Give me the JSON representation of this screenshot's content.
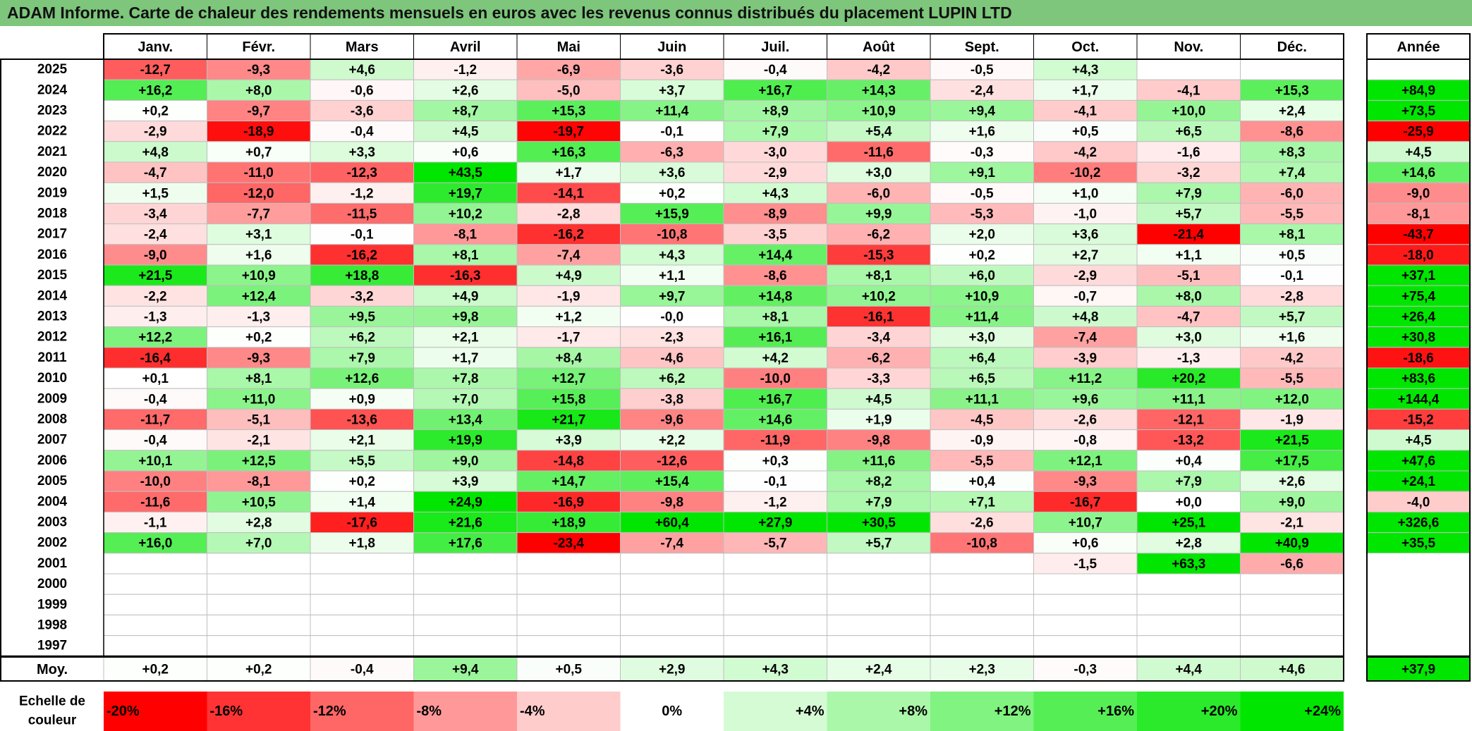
{
  "title": "ADAM Informe. Carte de chaleur des rendements mensuels en euros avec les revenus connus distribués du placement LUPIN LTD",
  "chart_data": {
    "type": "heatmap",
    "months": [
      "Janv.",
      "Févr.",
      "Mars",
      "Avril",
      "Mai",
      "Juin",
      "Juil.",
      "Août",
      "Sept.",
      "Oct.",
      "Nov.",
      "Déc."
    ],
    "year_header": "Année",
    "rows": [
      {
        "year": "2025",
        "values": [
          -12.7,
          -9.3,
          4.6,
          -1.2,
          -6.9,
          -3.6,
          -0.4,
          -4.2,
          -0.5,
          4.3,
          null,
          null
        ],
        "annual": null
      },
      {
        "year": "2024",
        "values": [
          16.2,
          8.0,
          -0.6,
          2.6,
          -5.0,
          3.7,
          16.7,
          14.3,
          -2.4,
          1.7,
          -4.1,
          15.3
        ],
        "annual": 84.9
      },
      {
        "year": "2023",
        "values": [
          0.2,
          -9.7,
          -3.6,
          8.7,
          15.3,
          11.4,
          8.9,
          10.9,
          9.4,
          -4.1,
          10.0,
          2.4
        ],
        "annual": 73.5
      },
      {
        "year": "2022",
        "values": [
          -2.9,
          -18.9,
          -0.4,
          4.5,
          -19.7,
          -0.1,
          7.9,
          5.4,
          1.6,
          0.5,
          6.5,
          -8.6
        ],
        "annual": -25.9
      },
      {
        "year": "2021",
        "values": [
          4.8,
          0.7,
          3.3,
          0.6,
          16.3,
          -6.3,
          -3.0,
          -11.6,
          -0.3,
          -4.2,
          -1.6,
          8.3
        ],
        "annual": 4.5
      },
      {
        "year": "2020",
        "values": [
          -4.7,
          -11.0,
          -12.3,
          43.5,
          1.7,
          3.6,
          -2.9,
          3.0,
          9.1,
          -10.2,
          -3.2,
          7.4
        ],
        "annual": 14.6
      },
      {
        "year": "2019",
        "values": [
          1.5,
          -12.0,
          -1.2,
          19.7,
          -14.1,
          0.2,
          4.3,
          -6.0,
          -0.5,
          1.0,
          7.9,
          -6.0
        ],
        "annual": -9.0
      },
      {
        "year": "2018",
        "values": [
          -3.4,
          -7.7,
          -11.5,
          10.2,
          -2.8,
          15.9,
          -8.9,
          9.9,
          -5.3,
          -1.0,
          5.7,
          -5.5
        ],
        "annual": -8.1
      },
      {
        "year": "2017",
        "values": [
          -2.4,
          3.1,
          -0.1,
          -8.1,
          -16.2,
          -10.8,
          -3.5,
          -6.2,
          2.0,
          3.6,
          -21.4,
          8.1
        ],
        "annual": -43.7
      },
      {
        "year": "2016",
        "values": [
          -9.0,
          1.6,
          -16.2,
          8.1,
          -7.4,
          4.3,
          14.4,
          -15.3,
          0.2,
          2.7,
          1.1,
          0.5
        ],
        "annual": -18.0
      },
      {
        "year": "2015",
        "values": [
          21.5,
          10.9,
          18.8,
          -16.3,
          4.9,
          1.1,
          -8.6,
          8.1,
          6.0,
          -2.9,
          -5.1,
          -0.1
        ],
        "annual": 37.1
      },
      {
        "year": "2014",
        "values": [
          -2.2,
          12.4,
          -3.2,
          4.9,
          -1.9,
          9.7,
          14.8,
          10.2,
          10.9,
          -0.7,
          8.0,
          -2.8
        ],
        "annual": 75.4
      },
      {
        "year": "2013",
        "values": [
          -1.3,
          -1.3,
          9.5,
          9.8,
          1.2,
          -0.0,
          8.1,
          -16.1,
          11.4,
          4.8,
          -4.7,
          5.7
        ],
        "annual": 26.4
      },
      {
        "year": "2012",
        "values": [
          12.2,
          0.2,
          6.2,
          2.1,
          -1.7,
          -2.3,
          16.1,
          -3.4,
          3.0,
          -7.4,
          3.0,
          1.6
        ],
        "annual": 30.8
      },
      {
        "year": "2011",
        "values": [
          -16.4,
          -9.3,
          7.9,
          1.7,
          8.4,
          -4.6,
          4.2,
          -6.2,
          6.4,
          -3.9,
          -1.3,
          -4.2
        ],
        "annual": -18.6
      },
      {
        "year": "2010",
        "values": [
          0.1,
          8.1,
          12.6,
          7.8,
          12.7,
          6.2,
          -10.0,
          -3.3,
          6.5,
          11.2,
          20.2,
          -5.5
        ],
        "annual": 83.6
      },
      {
        "year": "2009",
        "values": [
          -0.4,
          11.0,
          0.9,
          7.0,
          15.8,
          -3.8,
          16.7,
          4.5,
          11.1,
          9.6,
          11.1,
          12.0
        ],
        "annual": 144.4
      },
      {
        "year": "2008",
        "values": [
          -11.7,
          -5.1,
          -13.6,
          13.4,
          21.7,
          -9.6,
          14.6,
          1.9,
          -4.5,
          -2.6,
          -12.1,
          -1.9
        ],
        "annual": -15.2
      },
      {
        "year": "2007",
        "values": [
          -0.4,
          -2.1,
          2.1,
          19.9,
          3.9,
          2.2,
          -11.9,
          -9.8,
          -0.9,
          -0.8,
          -13.2,
          21.5
        ],
        "annual": 4.5
      },
      {
        "year": "2006",
        "values": [
          10.1,
          12.5,
          5.5,
          9.0,
          -14.8,
          -12.6,
          0.3,
          11.6,
          -5.5,
          12.1,
          0.4,
          17.5
        ],
        "annual": 47.6
      },
      {
        "year": "2005",
        "values": [
          -10.0,
          -8.1,
          0.2,
          3.9,
          14.7,
          15.4,
          -0.1,
          8.2,
          0.4,
          -9.3,
          7.9,
          2.6
        ],
        "annual": 24.1
      },
      {
        "year": "2004",
        "values": [
          -11.6,
          10.5,
          1.4,
          24.9,
          -16.9,
          -9.8,
          -1.2,
          7.9,
          7.1,
          -16.7,
          0.0,
          9.0
        ],
        "annual": -4.0
      },
      {
        "year": "2003",
        "values": [
          -1.1,
          2.8,
          -17.6,
          21.6,
          18.9,
          60.4,
          27.9,
          30.5,
          -2.6,
          10.7,
          25.1,
          -2.1
        ],
        "annual": 326.6
      },
      {
        "year": "2002",
        "values": [
          16.0,
          7.0,
          1.8,
          17.6,
          -23.4,
          -7.4,
          -5.7,
          5.7,
          -10.8,
          0.6,
          2.8,
          40.9
        ],
        "annual": 35.5
      },
      {
        "year": "2001",
        "values": [
          null,
          null,
          null,
          null,
          null,
          null,
          null,
          null,
          null,
          -1.5,
          63.3,
          -6.6
        ],
        "annual": null
      },
      {
        "year": "2000",
        "values": [
          null,
          null,
          null,
          null,
          null,
          null,
          null,
          null,
          null,
          null,
          null,
          null
        ],
        "annual": null
      },
      {
        "year": "1999",
        "values": [
          null,
          null,
          null,
          null,
          null,
          null,
          null,
          null,
          null,
          null,
          null,
          null
        ],
        "annual": null
      },
      {
        "year": "1998",
        "values": [
          null,
          null,
          null,
          null,
          null,
          null,
          null,
          null,
          null,
          null,
          null,
          null
        ],
        "annual": null
      },
      {
        "year": "1997",
        "values": [
          null,
          null,
          null,
          null,
          null,
          null,
          null,
          null,
          null,
          null,
          null,
          null
        ],
        "annual": null
      }
    ],
    "average": {
      "label": "Moy.",
      "values": [
        0.2,
        0.2,
        -0.4,
        9.4,
        0.5,
        2.9,
        4.3,
        2.4,
        2.3,
        -0.3,
        4.4,
        4.6
      ],
      "annual": 37.9
    },
    "scale": {
      "label_line1": "Echelle de",
      "label_line2": "couleur",
      "steps": [
        {
          "label": "-20%",
          "value": -20
        },
        {
          "label": "-16%",
          "value": -16
        },
        {
          "label": "-12%",
          "value": -12
        },
        {
          "label": "-8%",
          "value": -8
        },
        {
          "label": "-4%",
          "value": -4
        },
        {
          "label": "0%",
          "value": 0
        },
        {
          "label": "+4%",
          "value": 4
        },
        {
          "label": "+8%",
          "value": 8
        },
        {
          "label": "+12%",
          "value": 12
        },
        {
          "label": "+16%",
          "value": 16
        },
        {
          "label": "+20%",
          "value": 20
        },
        {
          "label": "+24%",
          "value": 24
        }
      ]
    },
    "colors": {
      "negative_max": "#ff0000",
      "neutral": "#ffffff",
      "positive_max": "#00e600",
      "title_bg": "#7dc67b"
    }
  }
}
